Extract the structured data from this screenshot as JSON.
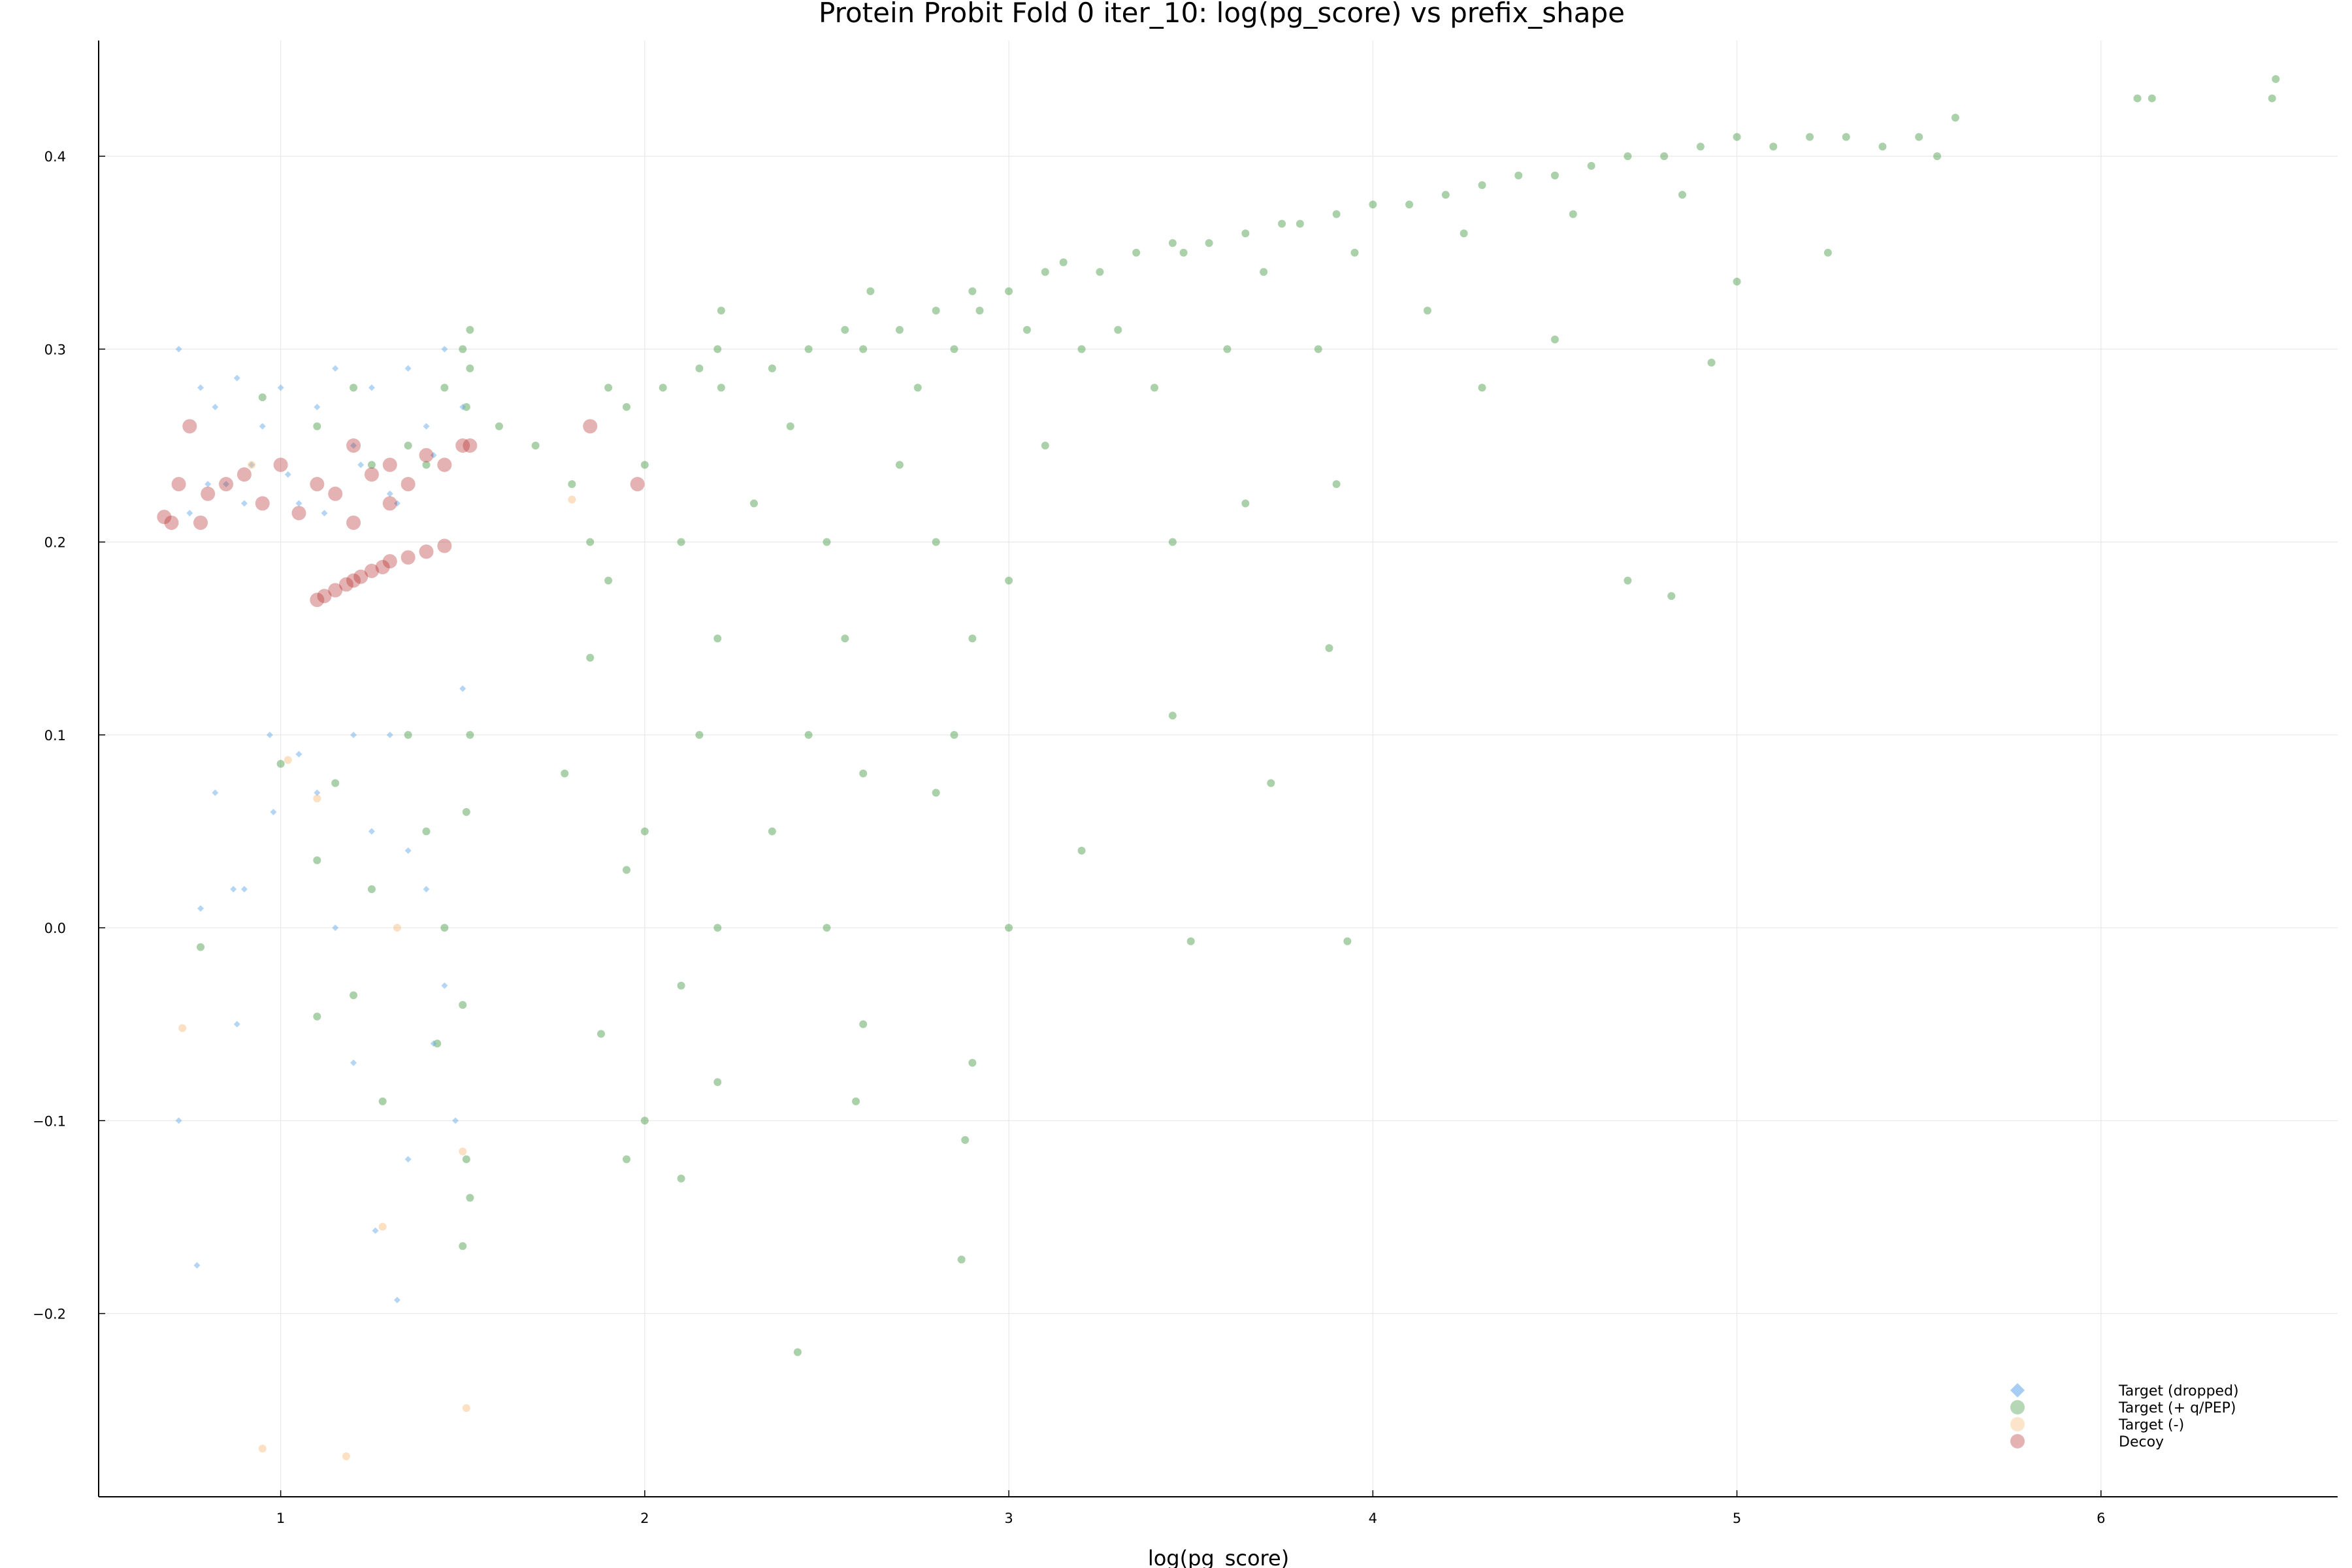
{
  "chart_data": {
    "type": "scatter",
    "title": "Protein Probit Fold 0 iter_10: log(pg_score) vs prefix_shape",
    "xlabel": "log(pg_score)",
    "ylabel": "",
    "xlim": [
      0.5,
      6.65
    ],
    "ylim": [
      -0.295,
      0.46
    ],
    "xticks": [
      1,
      2,
      3,
      4,
      5,
      6
    ],
    "yticks": [
      -0.2,
      -0.1,
      0.0,
      0.1,
      0.2,
      0.3,
      0.4
    ],
    "ytick_labels": [
      "−0.2",
      "−0.1",
      "0.0",
      "0.1",
      "0.2",
      "0.3",
      "0.4"
    ],
    "grid": true,
    "legend_position": "bottom-right",
    "series": [
      {
        "name": "Target (dropped)",
        "color": "#6aaeea",
        "marker": "diamond",
        "points": [
          [
            0.72,
            0.3
          ],
          [
            0.75,
            0.215
          ],
          [
            0.78,
            0.28
          ],
          [
            0.82,
            0.27
          ],
          [
            0.85,
            0.23
          ],
          [
            0.88,
            0.285
          ],
          [
            0.92,
            0.24
          ],
          [
            0.95,
            0.26
          ],
          [
            1.0,
            0.28
          ],
          [
            1.05,
            0.22
          ],
          [
            1.1,
            0.27
          ],
          [
            1.15,
            0.29
          ],
          [
            1.2,
            0.25
          ],
          [
            1.25,
            0.28
          ],
          [
            1.3,
            0.225
          ],
          [
            1.35,
            0.29
          ],
          [
            1.4,
            0.26
          ],
          [
            1.45,
            0.3
          ],
          [
            1.5,
            0.27
          ],
          [
            0.8,
            0.23
          ],
          [
            0.9,
            0.22
          ],
          [
            1.02,
            0.235
          ],
          [
            1.12,
            0.215
          ],
          [
            1.22,
            0.24
          ],
          [
            1.32,
            0.22
          ],
          [
            1.42,
            0.245
          ],
          [
            0.97,
            0.1
          ],
          [
            1.05,
            0.09
          ],
          [
            1.2,
            0.1
          ],
          [
            1.3,
            0.1
          ],
          [
            1.5,
            0.124
          ],
          [
            0.98,
            0.06
          ],
          [
            1.1,
            0.07
          ],
          [
            1.25,
            0.05
          ],
          [
            1.35,
            0.04
          ],
          [
            0.82,
            0.07
          ],
          [
            0.87,
            0.02
          ],
          [
            0.78,
            0.01
          ],
          [
            0.9,
            0.02
          ],
          [
            1.15,
            0.0
          ],
          [
            1.4,
            0.02
          ],
          [
            1.45,
            -0.03
          ],
          [
            0.88,
            -0.05
          ],
          [
            0.72,
            -0.1
          ],
          [
            1.2,
            -0.07
          ],
          [
            1.35,
            -0.12
          ],
          [
            1.42,
            -0.06
          ],
          [
            0.77,
            -0.175
          ],
          [
            1.32,
            -0.193
          ],
          [
            1.26,
            -0.157
          ],
          [
            1.48,
            -0.1
          ]
        ]
      },
      {
        "name": "Target (+ q/PEP)",
        "color": "#2e8b2e",
        "marker": "circle",
        "points": [
          [
            0.95,
            0.275
          ],
          [
            1.1,
            0.26
          ],
          [
            1.2,
            0.28
          ],
          [
            1.35,
            0.25
          ],
          [
            1.45,
            0.28
          ],
          [
            1.5,
            0.3
          ],
          [
            1.52,
            0.29
          ],
          [
            1.51,
            0.27
          ],
          [
            1.52,
            0.31
          ],
          [
            1.4,
            0.24
          ],
          [
            1.25,
            0.24
          ],
          [
            1.0,
            0.085
          ],
          [
            1.1,
            0.035
          ],
          [
            1.15,
            0.075
          ],
          [
            1.25,
            0.02
          ],
          [
            1.35,
            0.1
          ],
          [
            1.4,
            0.05
          ],
          [
            1.45,
            0.0
          ],
          [
            1.5,
            -0.04
          ],
          [
            1.51,
            -0.12
          ],
          [
            1.52,
            0.1
          ],
          [
            1.51,
            0.06
          ],
          [
            1.52,
            -0.14
          ],
          [
            1.5,
            -0.165
          ],
          [
            0.78,
            -0.01
          ],
          [
            1.2,
            -0.035
          ],
          [
            1.28,
            -0.09
          ],
          [
            1.43,
            -0.06
          ],
          [
            1.1,
            -0.046
          ],
          [
            1.6,
            0.26
          ],
          [
            1.7,
            0.25
          ],
          [
            1.8,
            0.23
          ],
          [
            1.85,
            0.2
          ],
          [
            1.9,
            0.28
          ],
          [
            1.95,
            0.27
          ],
          [
            2.05,
            0.28
          ],
          [
            2.15,
            0.29
          ],
          [
            2.2,
            0.3
          ],
          [
            2.21,
            0.28
          ],
          [
            2.21,
            0.32
          ],
          [
            2.0,
            0.24
          ],
          [
            2.1,
            0.2
          ],
          [
            1.9,
            0.18
          ],
          [
            2.2,
            0.15
          ],
          [
            2.15,
            0.1
          ],
          [
            2.0,
            0.05
          ],
          [
            1.95,
            0.03
          ],
          [
            2.2,
            0.0
          ],
          [
            2.1,
            -0.03
          ],
          [
            2.2,
            -0.08
          ],
          [
            2.0,
            -0.1
          ],
          [
            1.95,
            -0.12
          ],
          [
            2.1,
            -0.13
          ],
          [
            1.88,
            -0.055
          ],
          [
            1.78,
            0.08
          ],
          [
            1.85,
            0.14
          ],
          [
            2.35,
            0.29
          ],
          [
            2.45,
            0.3
          ],
          [
            2.55,
            0.31
          ],
          [
            2.6,
            0.3
          ],
          [
            2.62,
            0.33
          ],
          [
            2.4,
            0.26
          ],
          [
            2.3,
            0.22
          ],
          [
            2.5,
            0.2
          ],
          [
            2.55,
            0.15
          ],
          [
            2.45,
            0.1
          ],
          [
            2.6,
            0.08
          ],
          [
            2.35,
            0.05
          ],
          [
            2.5,
            0.0
          ],
          [
            2.6,
            -0.05
          ],
          [
            2.58,
            -0.09
          ],
          [
            2.42,
            -0.22
          ],
          [
            2.7,
            0.31
          ],
          [
            2.8,
            0.32
          ],
          [
            2.9,
            0.33
          ],
          [
            2.92,
            0.32
          ],
          [
            2.85,
            0.3
          ],
          [
            2.75,
            0.28
          ],
          [
            2.7,
            0.24
          ],
          [
            2.8,
            0.2
          ],
          [
            2.9,
            0.15
          ],
          [
            2.85,
            0.1
          ],
          [
            2.8,
            0.07
          ],
          [
            2.9,
            -0.07
          ],
          [
            2.88,
            -0.11
          ],
          [
            2.87,
            -0.172
          ],
          [
            3.0,
            0.33
          ],
          [
            3.1,
            0.34
          ],
          [
            3.15,
            0.345
          ],
          [
            3.05,
            0.31
          ],
          [
            3.2,
            0.3
          ],
          [
            3.1,
            0.25
          ],
          [
            3.0,
            0.18
          ],
          [
            3.2,
            0.04
          ],
          [
            3.0,
            0.0
          ],
          [
            3.25,
            0.34
          ],
          [
            3.35,
            0.35
          ],
          [
            3.45,
            0.355
          ],
          [
            3.48,
            0.35
          ],
          [
            3.3,
            0.31
          ],
          [
            3.4,
            0.28
          ],
          [
            3.45,
            0.2
          ],
          [
            3.45,
            0.11
          ],
          [
            3.5,
            -0.007
          ],
          [
            3.55,
            0.355
          ],
          [
            3.65,
            0.36
          ],
          [
            3.75,
            0.365
          ],
          [
            3.7,
            0.34
          ],
          [
            3.6,
            0.3
          ],
          [
            3.65,
            0.22
          ],
          [
            3.72,
            0.075
          ],
          [
            3.8,
            0.365
          ],
          [
            3.9,
            0.37
          ],
          [
            4.0,
            0.375
          ],
          [
            3.95,
            0.35
          ],
          [
            3.85,
            0.3
          ],
          [
            3.9,
            0.23
          ],
          [
            3.88,
            0.145
          ],
          [
            3.93,
            -0.007
          ],
          [
            4.1,
            0.375
          ],
          [
            4.2,
            0.38
          ],
          [
            4.3,
            0.385
          ],
          [
            4.25,
            0.36
          ],
          [
            4.15,
            0.32
          ],
          [
            4.3,
            0.28
          ],
          [
            4.4,
            0.39
          ],
          [
            4.5,
            0.39
          ],
          [
            4.6,
            0.395
          ],
          [
            4.55,
            0.37
          ],
          [
            4.5,
            0.305
          ],
          [
            4.7,
            0.4
          ],
          [
            4.8,
            0.4
          ],
          [
            4.9,
            0.405
          ],
          [
            4.85,
            0.38
          ],
          [
            4.7,
            0.18
          ],
          [
            4.82,
            0.172
          ],
          [
            5.0,
            0.41
          ],
          [
            5.1,
            0.405
          ],
          [
            5.2,
            0.41
          ],
          [
            5.0,
            0.335
          ],
          [
            4.93,
            0.293
          ],
          [
            5.3,
            0.41
          ],
          [
            5.4,
            0.405
          ],
          [
            5.5,
            0.41
          ],
          [
            5.6,
            0.42
          ],
          [
            5.55,
            0.4
          ],
          [
            5.25,
            0.35
          ],
          [
            6.1,
            0.43
          ],
          [
            6.14,
            0.43
          ],
          [
            6.48,
            0.44
          ],
          [
            6.47,
            0.43
          ]
        ]
      },
      {
        "name": "Target (-)",
        "color": "#f5b26b",
        "marker": "circle",
        "points": [
          [
            0.73,
            -0.052
          ],
          [
            0.95,
            -0.27
          ],
          [
            1.02,
            0.087
          ],
          [
            1.1,
            0.067
          ],
          [
            1.18,
            -0.274
          ],
          [
            1.28,
            -0.155
          ],
          [
            1.32,
            0.0
          ],
          [
            1.5,
            -0.116
          ],
          [
            1.51,
            -0.249
          ],
          [
            1.8,
            0.222
          ],
          [
            0.92,
            0.24
          ]
        ]
      },
      {
        "name": "Decoy",
        "color": "#b22222",
        "marker": "circle",
        "points": [
          [
            0.68,
            0.213
          ],
          [
            0.7,
            0.21
          ],
          [
            0.72,
            0.23
          ],
          [
            0.75,
            0.26
          ],
          [
            0.78,
            0.21
          ],
          [
            0.8,
            0.225
          ],
          [
            0.85,
            0.23
          ],
          [
            0.9,
            0.235
          ],
          [
            0.95,
            0.22
          ],
          [
            1.0,
            0.24
          ],
          [
            1.05,
            0.215
          ],
          [
            1.1,
            0.23
          ],
          [
            1.15,
            0.225
          ],
          [
            1.2,
            0.21
          ],
          [
            1.25,
            0.235
          ],
          [
            1.3,
            0.24
          ],
          [
            1.35,
            0.23
          ],
          [
            1.4,
            0.245
          ],
          [
            1.45,
            0.24
          ],
          [
            1.5,
            0.25
          ],
          [
            1.52,
            0.25
          ],
          [
            1.2,
            0.25
          ],
          [
            1.3,
            0.22
          ],
          [
            1.85,
            0.26
          ],
          [
            1.98,
            0.23
          ],
          [
            1.1,
            0.17
          ],
          [
            1.15,
            0.175
          ],
          [
            1.2,
            0.18
          ],
          [
            1.25,
            0.185
          ],
          [
            1.3,
            0.19
          ],
          [
            1.35,
            0.192
          ],
          [
            1.4,
            0.195
          ],
          [
            1.45,
            0.198
          ],
          [
            1.12,
            0.172
          ],
          [
            1.18,
            0.178
          ],
          [
            1.22,
            0.182
          ],
          [
            1.28,
            0.187
          ]
        ]
      }
    ]
  }
}
